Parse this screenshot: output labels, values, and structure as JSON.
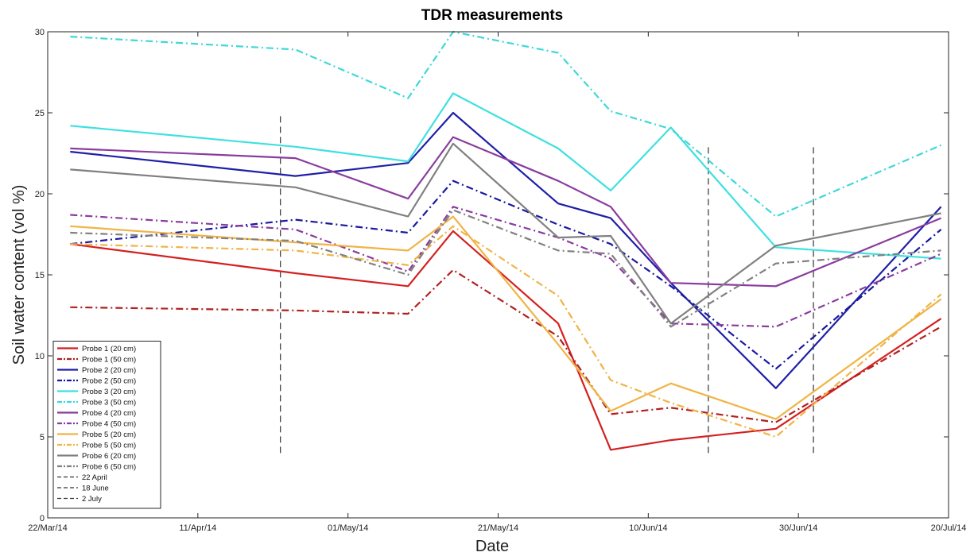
{
  "chart_data": {
    "type": "line",
    "title": "TDR measurements",
    "xlabel": "Date",
    "ylabel": "Soil water content (vol %)",
    "xlim": [
      "2014-03-22",
      "2014-07-20"
    ],
    "ylim": [
      0,
      30
    ],
    "xticks": [
      {
        "date": "2014-03-22",
        "label": "22/Mar/14"
      },
      {
        "date": "2014-04-11",
        "label": "11/Apr/14"
      },
      {
        "date": "2014-05-01",
        "label": "01/May/14"
      },
      {
        "date": "2014-05-21",
        "label": "21/May/14"
      },
      {
        "date": "2014-06-10",
        "label": "10/Jun/14"
      },
      {
        "date": "2014-06-30",
        "label": "30/Jun/14"
      },
      {
        "date": "2014-07-20",
        "label": "20/Jul/14"
      }
    ],
    "yticks": [
      0,
      5,
      10,
      15,
      20,
      25,
      30
    ],
    "grid": false,
    "legend_position": "bottom-left",
    "x": [
      "2014-03-25",
      "2014-04-24",
      "2014-05-09",
      "2014-05-15",
      "2014-05-29",
      "2014-06-05",
      "2014-06-13",
      "2014-06-27",
      "2014-07-19"
    ],
    "series": [
      {
        "name": "Probe 1 (20 cm)",
        "color": "#d42020",
        "dash": "solid",
        "values": [
          16.9,
          15.1,
          14.3,
          17.7,
          12.0,
          4.2,
          4.8,
          5.5,
          12.3
        ]
      },
      {
        "name": "Probe 1 (50 cm)",
        "color": "#b02020",
        "dash": "dashdot",
        "values": [
          13.0,
          12.8,
          12.6,
          15.3,
          11.2,
          6.4,
          6.8,
          5.9,
          11.8
        ]
      },
      {
        "name": "Probe 2 (20 cm)",
        "color": "#1f1fa8",
        "dash": "solid",
        "values": [
          22.6,
          21.1,
          21.9,
          25.0,
          19.4,
          18.5,
          14.5,
          8.0,
          19.2
        ]
      },
      {
        "name": "Probe 2 (50 cm)",
        "color": "#1818a0",
        "dash": "dashdot",
        "values": [
          16.9,
          18.4,
          17.6,
          20.8,
          18.1,
          16.9,
          14.3,
          9.2,
          17.8
        ]
      },
      {
        "name": "Probe 3 (20 cm)",
        "color": "#3ee0e0",
        "dash": "solid",
        "values": [
          24.2,
          22.9,
          22.0,
          26.2,
          22.8,
          20.2,
          24.1,
          16.7,
          16.0
        ]
      },
      {
        "name": "Probe 3 (50 cm)",
        "color": "#3ed8d8",
        "dash": "dashdot",
        "values": [
          29.7,
          28.9,
          25.9,
          30.0,
          28.7,
          25.1,
          24.0,
          18.6,
          23.0
        ]
      },
      {
        "name": "Probe 4 (20 cm)",
        "color": "#8a3c9e",
        "dash": "solid",
        "values": [
          22.8,
          22.2,
          19.7,
          23.5,
          20.8,
          19.2,
          14.5,
          14.3,
          18.5
        ]
      },
      {
        "name": "Probe 4 (50 cm)",
        "color": "#8a3c9e",
        "dash": "dashdot",
        "values": [
          18.7,
          17.8,
          15.2,
          19.2,
          17.3,
          16.0,
          12.0,
          11.8,
          16.3
        ]
      },
      {
        "name": "Probe 5 (20 cm)",
        "color": "#f0b445",
        "dash": "solid",
        "values": [
          18.0,
          17.0,
          16.5,
          18.6,
          10.7,
          6.6,
          8.3,
          6.1,
          13.5
        ]
      },
      {
        "name": "Probe 5 (50 cm)",
        "color": "#f0b445",
        "dash": "dashdot",
        "values": [
          16.9,
          16.5,
          15.6,
          18.0,
          13.7,
          8.5,
          7.1,
          5.0,
          13.8
        ]
      },
      {
        "name": "Probe 6 (20 cm)",
        "color": "#808080",
        "dash": "solid",
        "values": [
          21.5,
          20.4,
          18.6,
          23.1,
          17.3,
          17.4,
          12.0,
          16.8,
          18.8
        ]
      },
      {
        "name": "Probe 6 (50 cm)",
        "color": "#808080",
        "dash": "dashdot",
        "values": [
          17.6,
          17.1,
          15.0,
          19.0,
          16.5,
          16.3,
          11.8,
          15.7,
          16.5
        ]
      }
    ],
    "markers": [
      {
        "name": "22 April",
        "date": "2014-04-22",
        "range": [
          4,
          25
        ],
        "color": "#333333",
        "dash": "dashed"
      },
      {
        "name": "18 June",
        "date": "2014-06-18",
        "range": [
          4,
          23
        ],
        "color": "#333333",
        "dash": "dashed"
      },
      {
        "name": "2 July",
        "date": "2014-07-02",
        "range": [
          4,
          23
        ],
        "color": "#333333",
        "dash": "dashed"
      }
    ]
  }
}
